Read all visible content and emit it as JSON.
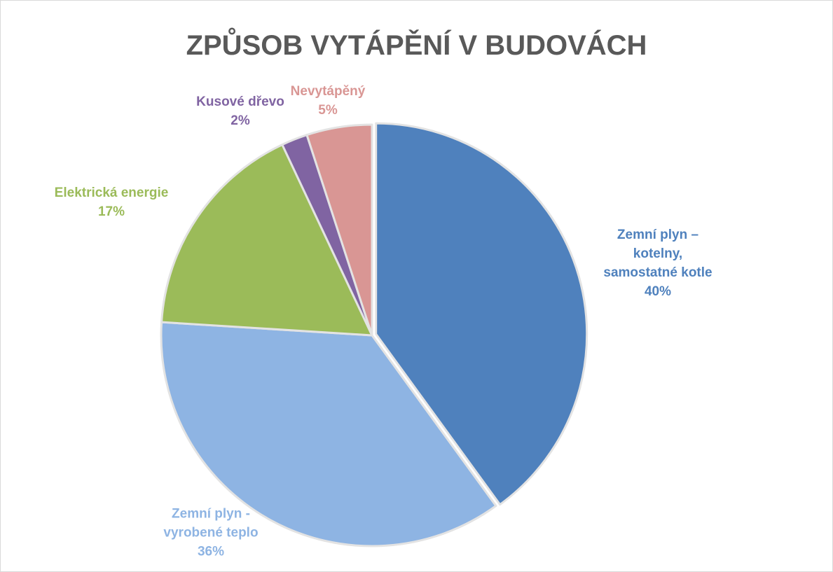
{
  "chart_data": {
    "type": "pie",
    "title": "ZPŮSOB VYTÁPĚNÍ V BUDOVÁCH",
    "categories": [
      "Zemní plyn – kotelny, samostatné kotle",
      "Zemní plyn - vyrobené teplo",
      "Elektrická energie",
      "Kusové dřevo",
      "Nevytápěný"
    ],
    "values": [
      40,
      36,
      17,
      2,
      5
    ],
    "value_labels": [
      "40%",
      "36%",
      "17%",
      "2%",
      "5%"
    ],
    "colors": [
      "#4f81bd",
      "#8eb4e3",
      "#9bbb59",
      "#8064a2",
      "#d99694"
    ]
  }
}
